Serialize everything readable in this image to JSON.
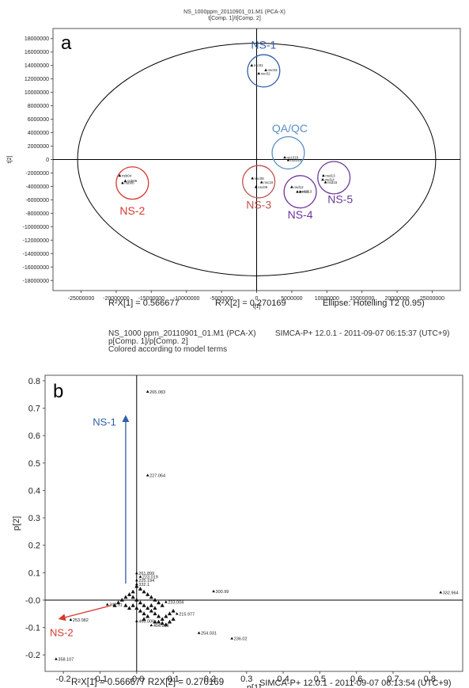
{
  "charts": [
    {
      "chart_data": {
        "type": "scatter",
        "panel_letter": "a",
        "title": "NS_1000ppm_20110901_01.M1 (PCA-X)",
        "subtitle": "t[Comp. 1]/t[Comp. 2]",
        "xlabel": "t[1]",
        "ylabel": "t[2]",
        "xlim": [
          -29000000,
          29000000
        ],
        "ylim": [
          -19500000,
          19500000
        ],
        "x_ticks": [
          -25000000,
          -20000000,
          -15000000,
          -10000000,
          -5000000,
          0,
          5000000,
          10000000,
          15000000,
          20000000,
          25000000
        ],
        "y_ticks": [
          18000000,
          16000000,
          14000000,
          12000000,
          10000000,
          8000000,
          6000000,
          4000000,
          2000000,
          0,
          -2000000,
          -4000000,
          -6000000,
          -8000000,
          -10000000,
          -12000000,
          -14000000,
          -16000000,
          -18000000
        ],
        "x_tick_labels": [
          "-25000000",
          "-20000000",
          "-15000000",
          "-10000000",
          "-5000000",
          "0",
          "5000000",
          "10000000",
          "15000000",
          "20000000",
          "25000000"
        ],
        "y_tick_labels": [
          "18000000",
          "16000000",
          "14000000",
          "12000000",
          "10000000",
          "8000000",
          "6000000",
          "4000000",
          "2000000",
          "0",
          "-2000000",
          "-4000000",
          "-6000000",
          "-8000000",
          "-10000000",
          "-12000000",
          "-14000000",
          "-16000000",
          "-18000000"
        ],
        "ellipse": {
          "rx": 25500000,
          "ry": 17300000
        },
        "groups": [
          {
            "name": "NS-1",
            "color": "#2f5fa8",
            "center": [
              1000000,
              13200000
            ],
            "radius": 2300000,
            "points": [
              [
                -700000,
                14000000,
                "nsc01"
              ],
              [
                1300000,
                13300000,
                "nsc03"
              ],
              [
                300000,
                12800000,
                "nsc02"
              ]
            ]
          },
          {
            "name": "QA/QC",
            "color": "#5b8fc4",
            "center": [
              4500000,
              1000000
            ],
            "radius": 2300000,
            "points": [
              [
                4000000,
                300000,
                "ns1018"
              ],
              [
                4500000,
                -100000,
                "nsc014"
              ]
            ]
          },
          {
            "name": "NS-2",
            "color": "#d9382e",
            "center": [
              -17700000,
              -3500000
            ],
            "radius": 2300000,
            "points": [
              [
                -19500000,
                -2400000,
                "nsb04"
              ],
              [
                -18700000,
                -3200000,
                "nsb05"
              ],
              [
                -19100000,
                -3500000,
                "nsb06"
              ]
            ]
          },
          {
            "name": "NS-3",
            "color": "#c0504d",
            "center": [
              300000,
              -3300000
            ],
            "radius": 2300000,
            "points": [
              [
                -600000,
                -2800000,
                "nsc08"
              ],
              [
                700000,
                -3400000,
                "nsc10"
              ],
              [
                -100000,
                -4100000,
                "nsc09"
              ]
            ]
          },
          {
            "name": "NS-4",
            "color": "#7030a0",
            "center": [
              6200000,
              -4800000
            ],
            "radius": 2300000,
            "points": [
              [
                5000000,
                -4100000,
                "nsd12"
              ],
              [
                5800000,
                -4800000,
                "nsd11"
              ],
              [
                6200000,
                -4800000,
                "nsd13"
              ]
            ]
          },
          {
            "name": "NS-5",
            "color": "#6a3a99",
            "center": [
              11000000,
              -2700000
            ],
            "radius": 2300000,
            "points": [
              [
                9500000,
                -2400000,
                "nsd13"
              ],
              [
                9400000,
                -3000000,
                "nsd14"
              ],
              [
                9800000,
                -3400000,
                "nsd15"
              ]
            ]
          }
        ]
      },
      "footer": {
        "r2x1": "R²X[1] = 0.566677",
        "r2x2": "R²X[2] = 0.270169",
        "ellipse": "Ellipse: Hotelling T2 (0.95)"
      }
    },
    {
      "chart_data": {
        "type": "scatter",
        "panel_letter": "b",
        "title": "NS_1000 ppm_20110901_01.M1 (PCA-X)",
        "software": "SIMCA-P+ 12.0.1 - 2011-09-07 06:15:37 (UTC+9)",
        "subtitle": "p[Comp. 1]/p[Comp. 2]",
        "colored_note": "Colored according to model terms",
        "xlabel": "p[1]",
        "ylabel": "p[2]",
        "xlim": [
          -0.25,
          0.89
        ],
        "ylim": [
          -0.26,
          0.82
        ],
        "x_ticks": [
          -0.2,
          -0.1,
          0,
          0.1,
          0.2,
          0.3,
          0.4,
          0.5,
          0.6,
          0.7,
          0.8
        ],
        "y_ticks": [
          0.8,
          0.7,
          0.6,
          0.5,
          0.4,
          0.3,
          0.2,
          0.1,
          0,
          -0.1,
          -0.2
        ],
        "x_tick_labels": [
          "-0.2",
          "-0.1",
          "-0.0",
          "0.1",
          "0.2",
          "0.3",
          "0.4",
          "0.5",
          "0.6",
          "0.7",
          "0.8"
        ],
        "y_tick_labels": [
          "0.8",
          "0.7",
          "0.6",
          "0.5",
          "0.4",
          "0.3",
          "0.2",
          "0.1",
          "-0.0",
          "-0.1",
          "-0.2"
        ],
        "labeled_points": [
          [
            0.03,
            0.76,
            "265.083"
          ],
          [
            0.03,
            0.455,
            "227.064"
          ],
          [
            0.83,
            0.028,
            "332.964"
          ],
          [
            0.21,
            0.032,
            "300.99"
          ],
          [
            -0.08,
            -0.016,
            "342.11"
          ],
          [
            -0.18,
            -0.072,
            "253.082"
          ],
          [
            -0.22,
            -0.215,
            "358.107"
          ],
          [
            0.17,
            -0.12,
            "254.031"
          ],
          [
            0.26,
            -0.14,
            "236.02"
          ],
          [
            0.11,
            -0.05,
            "215.977"
          ],
          [
            0.08,
            -0.007,
            "233.004"
          ],
          [
            0.04,
            -0.092,
            "404.036"
          ],
          [
            0.0,
            -0.077,
            "466.006"
          ],
          [
            0.0,
            0.098,
            "261.899"
          ],
          [
            0.01,
            0.085,
            "223.019"
          ],
          [
            0.0,
            0.072,
            "225.194"
          ],
          [
            0.0,
            0.058,
            "332.1"
          ]
        ],
        "cluster_points": [
          [
            -0.06,
            -0.02
          ],
          [
            -0.05,
            -0.01
          ],
          [
            -0.04,
            0.0
          ],
          [
            -0.03,
            0.01
          ],
          [
            -0.02,
            0.02
          ],
          [
            -0.01,
            0.01
          ],
          [
            0.0,
            0.0
          ],
          [
            0.01,
            -0.01
          ],
          [
            0.02,
            -0.02
          ],
          [
            0.03,
            -0.03
          ],
          [
            0.04,
            -0.04
          ],
          [
            0.05,
            -0.05
          ],
          [
            0.06,
            -0.06
          ],
          [
            0.07,
            -0.07
          ],
          [
            0.08,
            -0.06
          ],
          [
            0.09,
            -0.05
          ],
          [
            0.1,
            -0.04
          ],
          [
            0.04,
            0.01
          ],
          [
            0.05,
            0.0
          ],
          [
            0.06,
            -0.01
          ],
          [
            0.07,
            -0.02
          ],
          [
            0.03,
            -0.06
          ],
          [
            0.02,
            -0.05
          ],
          [
            0.01,
            -0.04
          ],
          [
            0.0,
            -0.03
          ],
          [
            -0.01,
            -0.02
          ],
          [
            -0.02,
            -0.03
          ],
          [
            -0.03,
            -0.02
          ],
          [
            0.05,
            -0.08
          ],
          [
            0.06,
            -0.08
          ],
          [
            0.07,
            -0.085
          ],
          [
            0.08,
            -0.09
          ],
          [
            0.09,
            -0.08
          ],
          [
            0.1,
            -0.07
          ],
          [
            0.02,
            0.03
          ],
          [
            0.03,
            0.02
          ],
          [
            0.01,
            0.04
          ],
          [
            0.0,
            0.05
          ],
          [
            -0.01,
            0.03
          ],
          [
            0.04,
            -0.02
          ],
          [
            0.05,
            -0.03
          ],
          [
            0.02,
            -0.07
          ]
        ],
        "arrows": [
          {
            "name": "NS-1",
            "color": "#2f5fa8",
            "from": [
              -0.03,
              0.06
            ],
            "to": [
              -0.03,
              0.67
            ]
          },
          {
            "name": "NS-2",
            "color": "#d9382e",
            "from": [
              -0.07,
              -0.02
            ],
            "to": [
              -0.21,
              -0.068
            ]
          }
        ]
      },
      "footer": {
        "r2": "R²X[1] = 0.566677 R2X[2] = 0.270169",
        "software": "SIMCA-P+ 12.0.1 - 2011-09-07 06:13:54 (UTC+9)"
      }
    }
  ]
}
